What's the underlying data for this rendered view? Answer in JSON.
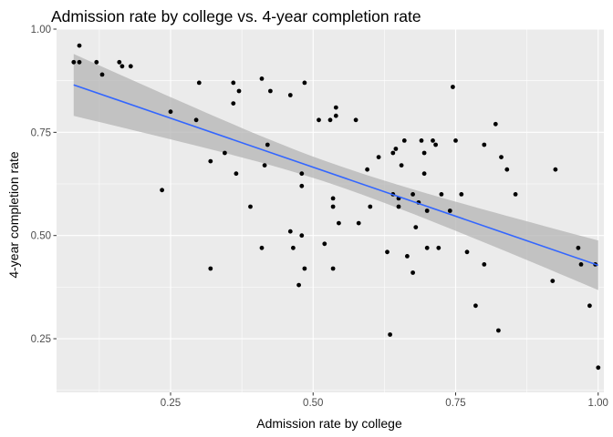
{
  "chart_data": {
    "type": "scatter",
    "title": "Admission rate by college vs. 4-year completion rate",
    "xlabel": "Admission rate by college",
    "ylabel": "4-year completion rate",
    "xlim": [
      0.05,
      1.01
    ],
    "ylim": [
      0.12,
      1.0
    ],
    "x_ticks": [
      0.25,
      0.5,
      0.75,
      1.0
    ],
    "x_tick_labels": [
      "0.25",
      "0.50",
      "0.75",
      "1.00"
    ],
    "y_ticks": [
      0.25,
      0.5,
      0.75,
      1.0
    ],
    "y_tick_labels": [
      "0.25",
      "0.50",
      "0.75",
      "1.00"
    ],
    "grid": true,
    "colors": {
      "panel": "#ebebeb",
      "grid_major": "#ffffff",
      "point": "#000000",
      "smooth_line": "#3366ff",
      "confidence_band": "#b4b4b4"
    },
    "points": [
      {
        "x": 0.08,
        "y": 0.92
      },
      {
        "x": 0.09,
        "y": 0.92
      },
      {
        "x": 0.09,
        "y": 0.96
      },
      {
        "x": 0.12,
        "y": 0.92
      },
      {
        "x": 0.13,
        "y": 0.89
      },
      {
        "x": 0.16,
        "y": 0.92
      },
      {
        "x": 0.165,
        "y": 0.91
      },
      {
        "x": 0.18,
        "y": 0.91
      },
      {
        "x": 0.235,
        "y": 0.61
      },
      {
        "x": 0.25,
        "y": 0.8
      },
      {
        "x": 0.295,
        "y": 0.78
      },
      {
        "x": 0.3,
        "y": 0.87
      },
      {
        "x": 0.32,
        "y": 0.68
      },
      {
        "x": 0.32,
        "y": 0.42
      },
      {
        "x": 0.345,
        "y": 0.7
      },
      {
        "x": 0.36,
        "y": 0.82
      },
      {
        "x": 0.36,
        "y": 0.87
      },
      {
        "x": 0.365,
        "y": 0.65
      },
      {
        "x": 0.37,
        "y": 0.85
      },
      {
        "x": 0.39,
        "y": 0.57
      },
      {
        "x": 0.41,
        "y": 0.88
      },
      {
        "x": 0.41,
        "y": 0.47
      },
      {
        "x": 0.415,
        "y": 0.67
      },
      {
        "x": 0.42,
        "y": 0.72
      },
      {
        "x": 0.425,
        "y": 0.85
      },
      {
        "x": 0.46,
        "y": 0.84
      },
      {
        "x": 0.46,
        "y": 0.51
      },
      {
        "x": 0.465,
        "y": 0.47
      },
      {
        "x": 0.475,
        "y": 0.38
      },
      {
        "x": 0.48,
        "y": 0.62
      },
      {
        "x": 0.48,
        "y": 0.65
      },
      {
        "x": 0.48,
        "y": 0.5
      },
      {
        "x": 0.485,
        "y": 0.87
      },
      {
        "x": 0.485,
        "y": 0.42
      },
      {
        "x": 0.51,
        "y": 0.78
      },
      {
        "x": 0.52,
        "y": 0.48
      },
      {
        "x": 0.53,
        "y": 0.78
      },
      {
        "x": 0.535,
        "y": 0.59
      },
      {
        "x": 0.535,
        "y": 0.57
      },
      {
        "x": 0.535,
        "y": 0.42
      },
      {
        "x": 0.54,
        "y": 0.81
      },
      {
        "x": 0.54,
        "y": 0.79
      },
      {
        "x": 0.545,
        "y": 0.53
      },
      {
        "x": 0.575,
        "y": 0.78
      },
      {
        "x": 0.58,
        "y": 0.53
      },
      {
        "x": 0.595,
        "y": 0.66
      },
      {
        "x": 0.6,
        "y": 0.57
      },
      {
        "x": 0.615,
        "y": 0.69
      },
      {
        "x": 0.63,
        "y": 0.46
      },
      {
        "x": 0.635,
        "y": 0.26
      },
      {
        "x": 0.64,
        "y": 0.6
      },
      {
        "x": 0.64,
        "y": 0.7
      },
      {
        "x": 0.645,
        "y": 0.71
      },
      {
        "x": 0.65,
        "y": 0.59
      },
      {
        "x": 0.65,
        "y": 0.57
      },
      {
        "x": 0.655,
        "y": 0.67
      },
      {
        "x": 0.66,
        "y": 0.73
      },
      {
        "x": 0.665,
        "y": 0.45
      },
      {
        "x": 0.675,
        "y": 0.6
      },
      {
        "x": 0.675,
        "y": 0.41
      },
      {
        "x": 0.68,
        "y": 0.52
      },
      {
        "x": 0.685,
        "y": 0.58
      },
      {
        "x": 0.69,
        "y": 0.73
      },
      {
        "x": 0.695,
        "y": 0.7
      },
      {
        "x": 0.695,
        "y": 0.65
      },
      {
        "x": 0.7,
        "y": 0.47
      },
      {
        "x": 0.7,
        "y": 0.56
      },
      {
        "x": 0.71,
        "y": 0.73
      },
      {
        "x": 0.715,
        "y": 0.72
      },
      {
        "x": 0.72,
        "y": 0.47
      },
      {
        "x": 0.725,
        "y": 0.6
      },
      {
        "x": 0.74,
        "y": 0.56
      },
      {
        "x": 0.745,
        "y": 0.86
      },
      {
        "x": 0.75,
        "y": 0.73
      },
      {
        "x": 0.76,
        "y": 0.6
      },
      {
        "x": 0.77,
        "y": 0.46
      },
      {
        "x": 0.785,
        "y": 0.33
      },
      {
        "x": 0.8,
        "y": 0.72
      },
      {
        "x": 0.8,
        "y": 0.43
      },
      {
        "x": 0.82,
        "y": 0.77
      },
      {
        "x": 0.825,
        "y": 0.27
      },
      {
        "x": 0.83,
        "y": 0.69
      },
      {
        "x": 0.84,
        "y": 0.66
      },
      {
        "x": 0.855,
        "y": 0.6
      },
      {
        "x": 0.92,
        "y": 0.39
      },
      {
        "x": 0.925,
        "y": 0.66
      },
      {
        "x": 0.965,
        "y": 0.47
      },
      {
        "x": 0.97,
        "y": 0.43
      },
      {
        "x": 0.985,
        "y": 0.33
      },
      {
        "x": 0.995,
        "y": 0.43
      },
      {
        "x": 1.0,
        "y": 0.18
      }
    ],
    "smooth": {
      "method": "linear",
      "x": [
        0.08,
        1.0
      ],
      "y": [
        0.865,
        0.428
      ],
      "band_lower": [
        0.79,
        0.37
      ],
      "band_upper": [
        0.94,
        0.49
      ]
    }
  }
}
